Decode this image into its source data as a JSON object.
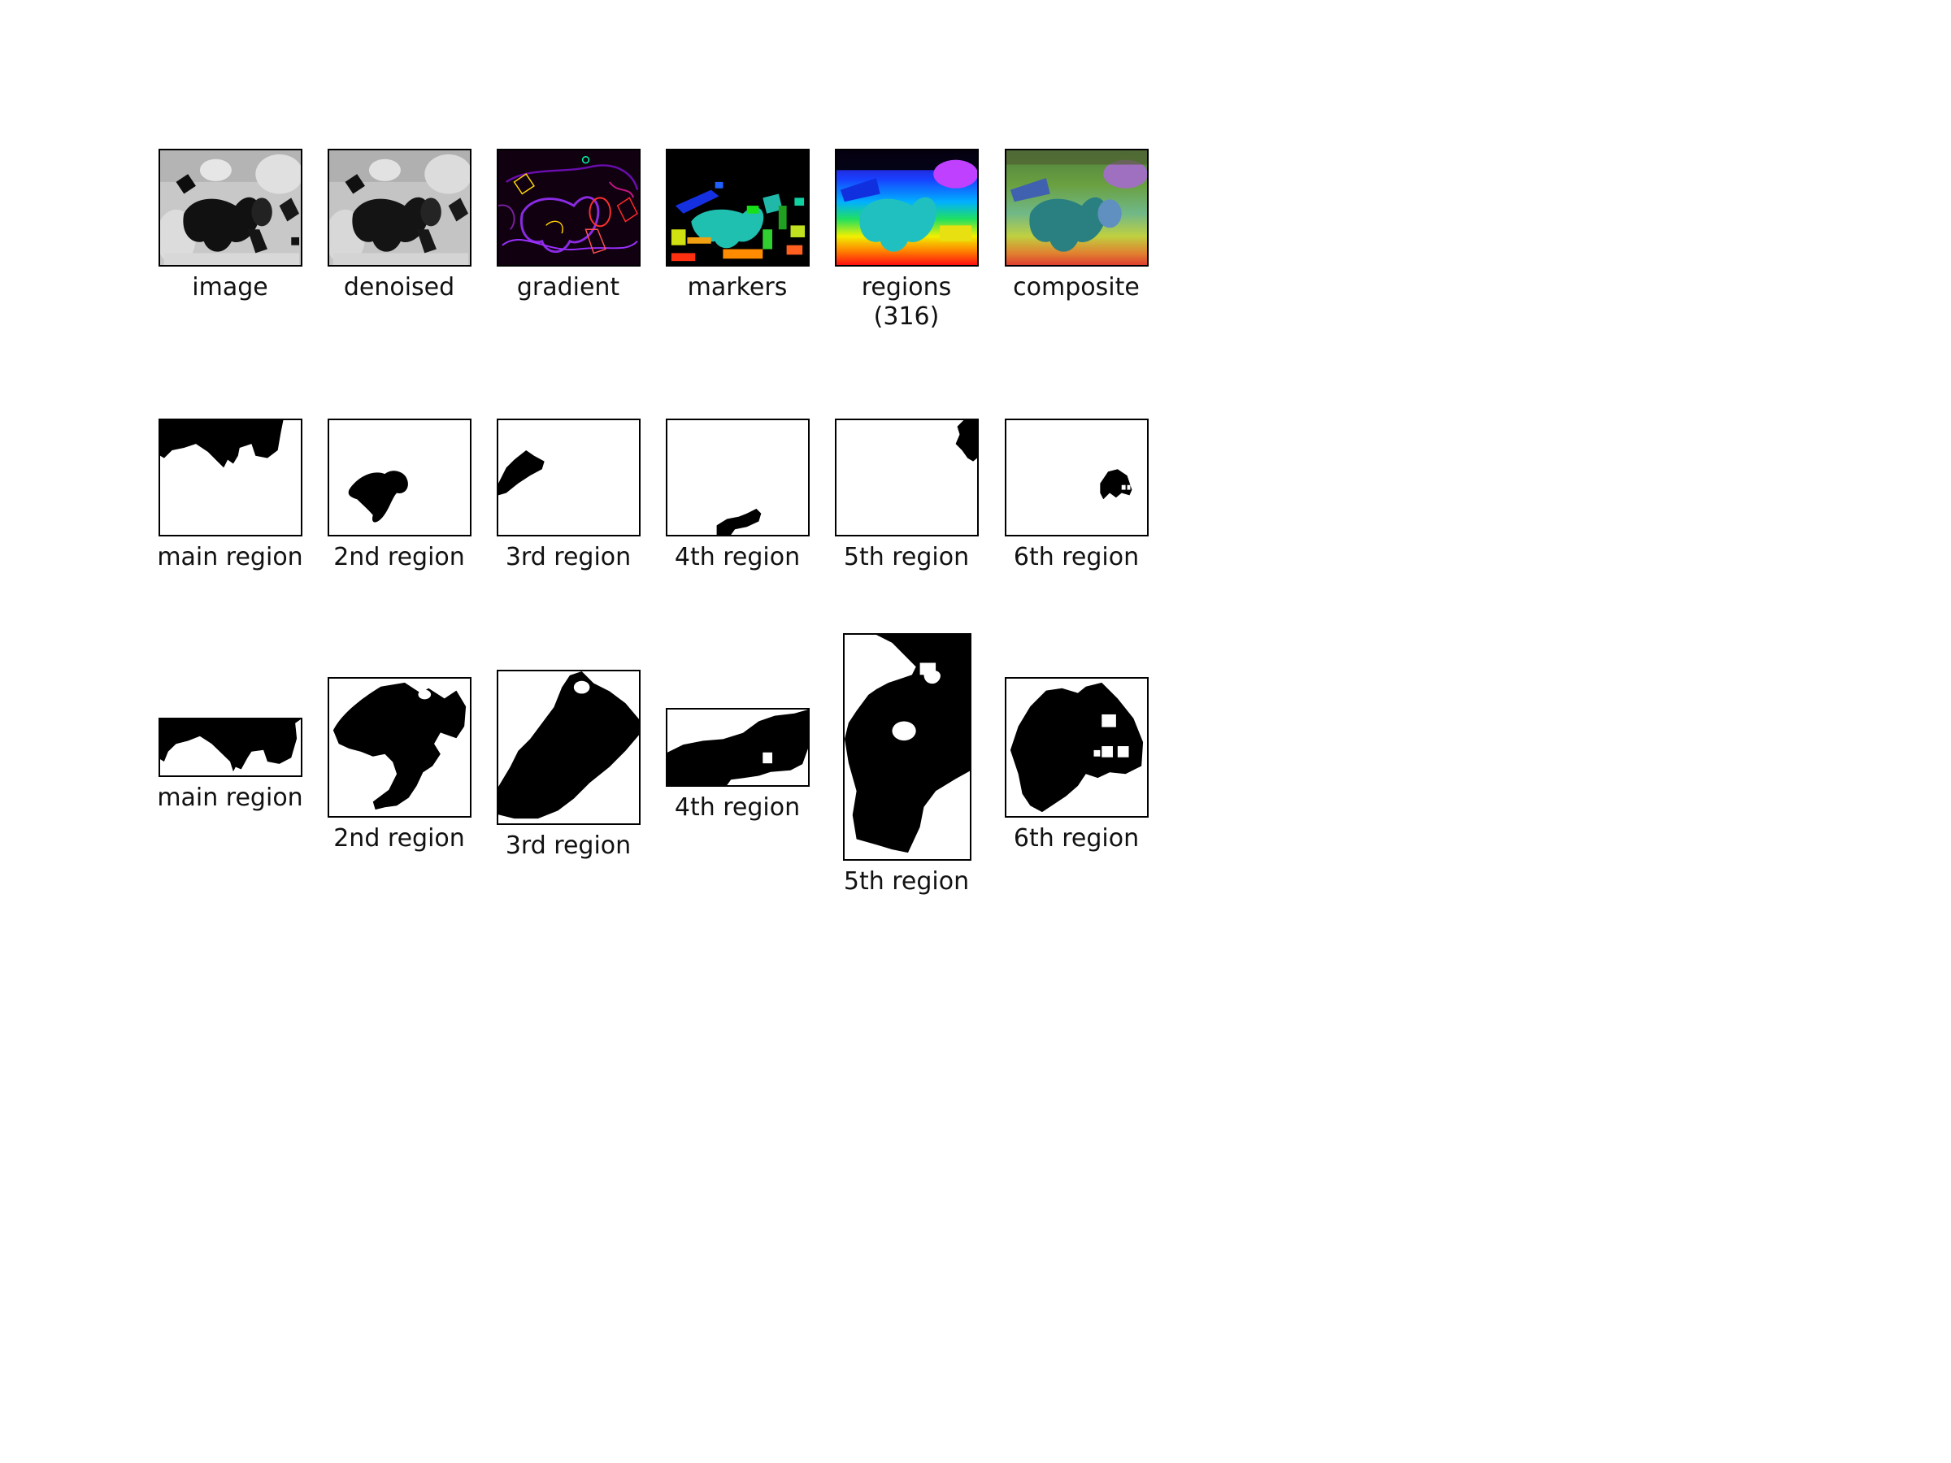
{
  "row1": {
    "image_caption": "image",
    "denoised_caption": "denoised",
    "gradient_caption": "gradient",
    "markers_caption": "markers",
    "regions_caption": "regions\n(316)",
    "composite_caption": "composite"
  },
  "row2": {
    "captions": [
      "main region",
      "2nd region",
      "3rd region",
      "4th region",
      "5th region",
      "6th region"
    ]
  },
  "row3": {
    "captions": [
      "main region",
      "2nd region",
      "3rd region",
      "4th region",
      "5th region",
      "6th region"
    ]
  },
  "colors": {
    "border": "#000000",
    "mask_fill": "#000000",
    "background": "#ffffff"
  }
}
